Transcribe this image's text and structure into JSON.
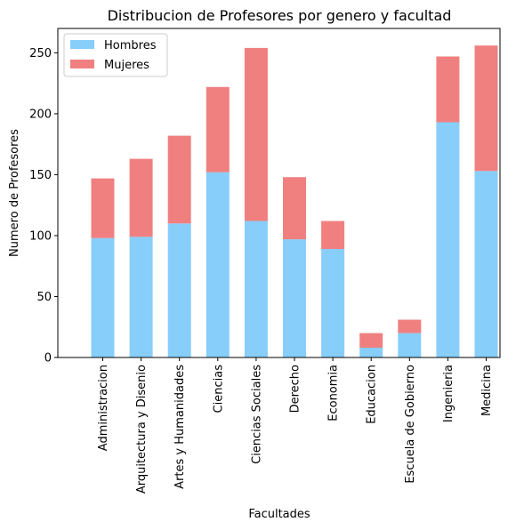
{
  "chart_data": {
    "type": "bar",
    "stacked": true,
    "title": "Distribucion de Profesores por genero y facultad",
    "xlabel": "Facultades",
    "ylabel": "Numero de Profesores",
    "ylim": [
      0,
      270
    ],
    "yticks": [
      0,
      50,
      100,
      150,
      200,
      250
    ],
    "grid": false,
    "legend_position": "top-left",
    "categories": [
      "Administracion",
      "Arquitectura y Disenio",
      "Artes y Humanidades",
      "Ciencias",
      "Ciencias Sociales",
      "Derecho",
      "Economia",
      "Educacion",
      "Escuela de Gobierno",
      "Ingenieria",
      "Medicina"
    ],
    "series": [
      {
        "name": "Hombres",
        "color": "#87cefa",
        "values": [
          98,
          99,
          110,
          152,
          112,
          97,
          89,
          8,
          20,
          193,
          153
        ]
      },
      {
        "name": "Mujeres",
        "color": "#f08080",
        "values": [
          49,
          64,
          72,
          70,
          142,
          51,
          23,
          12,
          11,
          54,
          103
        ]
      }
    ]
  }
}
